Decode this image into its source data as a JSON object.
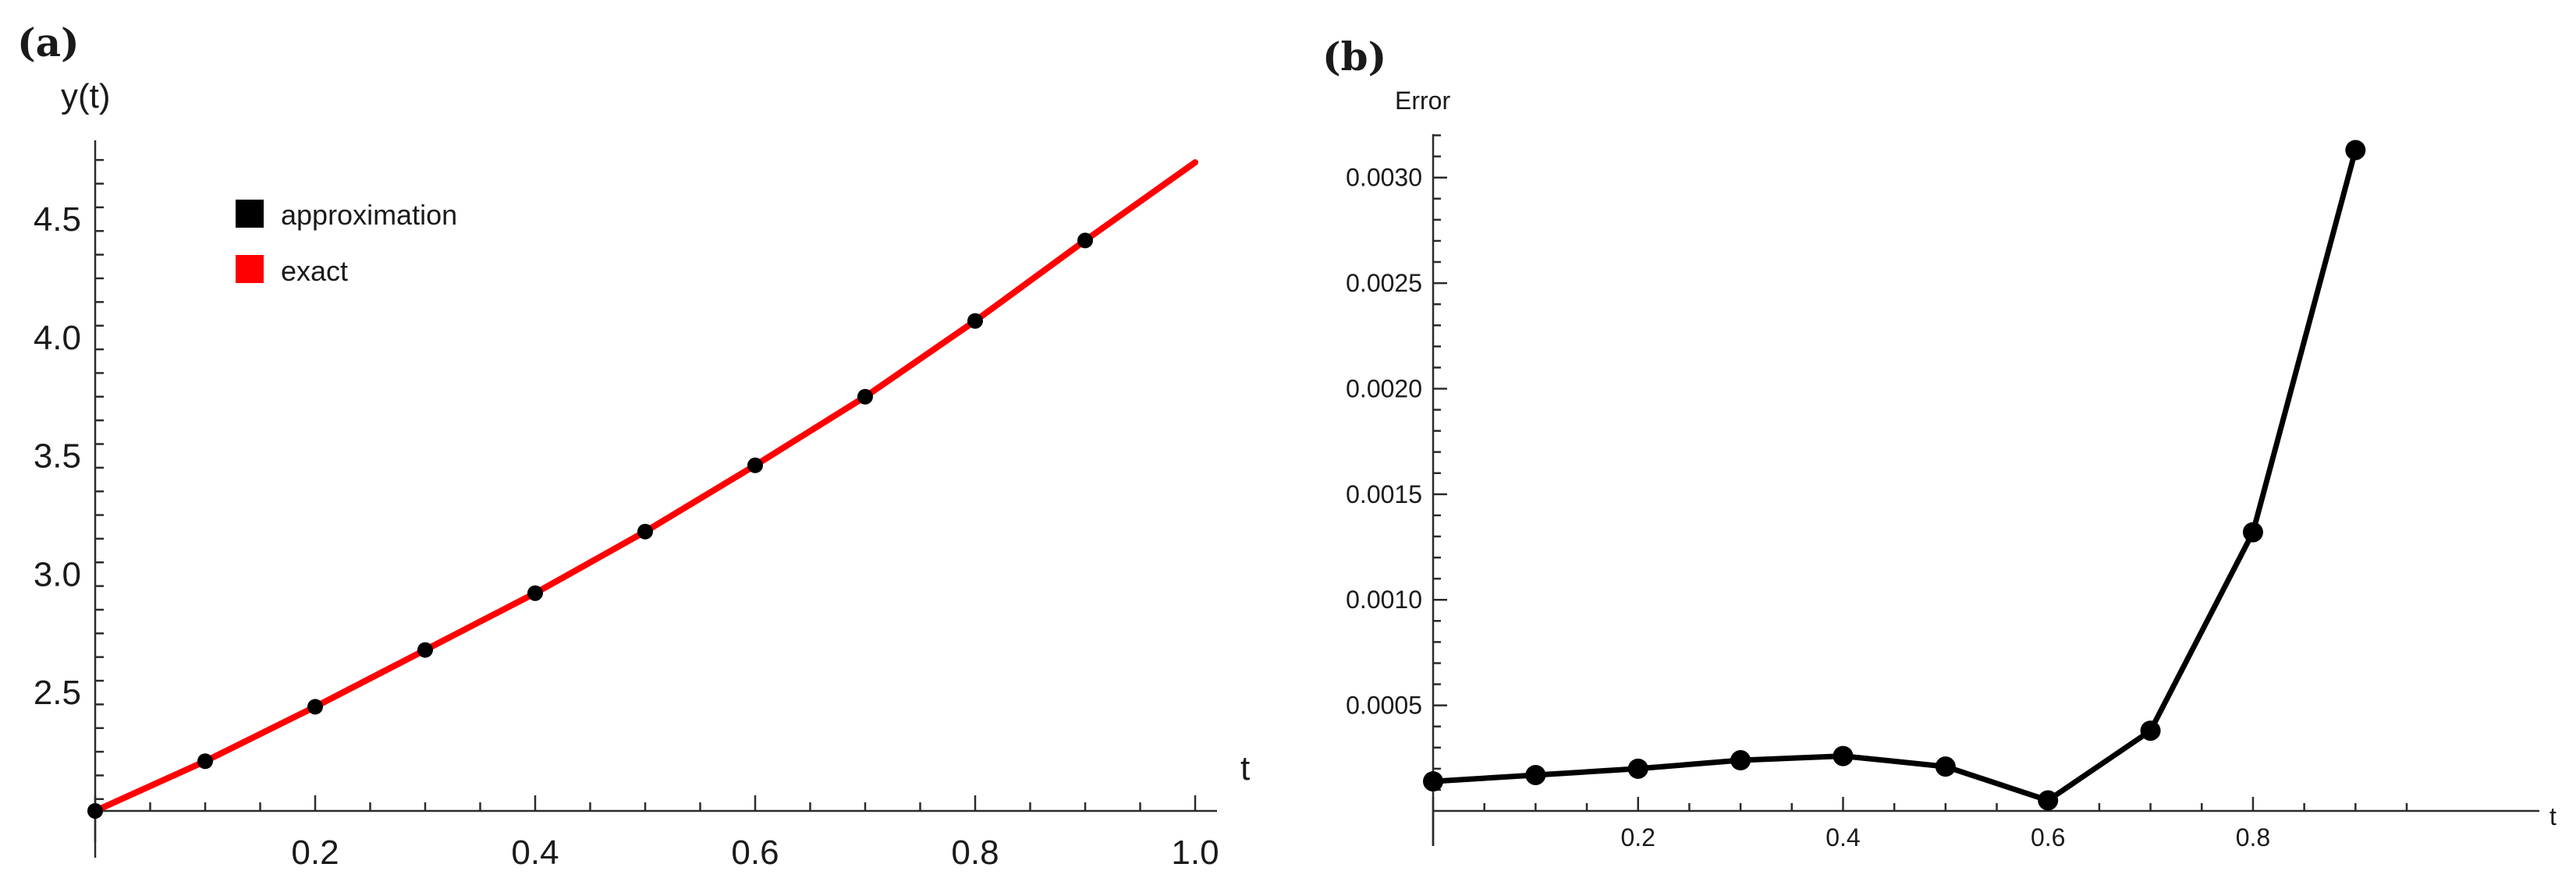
{
  "chart_data": [
    {
      "panel_label": "(a)",
      "type": "line",
      "xlabel": "t",
      "ylabel": "y(t)",
      "xlim": [
        0,
        1.0
      ],
      "ylim": [
        2.0,
        4.8
      ],
      "x_ticks": [
        "0.2",
        "0.4",
        "0.6",
        "0.8",
        "1.0"
      ],
      "x_tick_values": [
        0.2,
        0.4,
        0.6,
        0.8,
        1.0
      ],
      "y_ticks": [
        "2.5",
        "3.0",
        "3.5",
        "4.0",
        "4.5"
      ],
      "y_tick_values": [
        2.5,
        3.0,
        3.5,
        4.0,
        4.5
      ],
      "legend_position": "top-left",
      "series": [
        {
          "name": "approximation",
          "color": "#000000",
          "kind": "points",
          "x": [
            0,
            0.1,
            0.2,
            0.3,
            0.4,
            0.5,
            0.6,
            0.7,
            0.8,
            0.9
          ],
          "y": [
            2.0,
            2.21,
            2.44,
            2.68,
            2.92,
            3.18,
            3.46,
            3.75,
            4.07,
            4.41
          ]
        },
        {
          "name": "exact",
          "color": "#ff0000",
          "kind": "line",
          "x": [
            0,
            0.1,
            0.2,
            0.3,
            0.4,
            0.5,
            0.6,
            0.7,
            0.8,
            0.9,
            1.0
          ],
          "y": [
            2.0,
            2.21,
            2.44,
            2.68,
            2.92,
            3.18,
            3.46,
            3.75,
            4.07,
            4.41,
            4.74
          ]
        }
      ]
    },
    {
      "panel_label": "(b)",
      "type": "line",
      "xlabel": "t",
      "ylabel": "Error",
      "xlim": [
        0,
        0.95
      ],
      "ylim": [
        0.0,
        0.00325
      ],
      "x_ticks": [
        "0.2",
        "0.4",
        "0.6",
        "0.8"
      ],
      "x_tick_values": [
        0.2,
        0.4,
        0.6,
        0.8
      ],
      "y_ticks": [
        "0.0005",
        "0.0010",
        "0.0015",
        "0.0020",
        "0.0025",
        "0.0030"
      ],
      "y_tick_values": [
        0.0005,
        0.001,
        0.0015,
        0.002,
        0.0025,
        0.003
      ],
      "series": [
        {
          "color": "#000000",
          "kind": "line+points",
          "x": [
            0,
            0.1,
            0.2,
            0.3,
            0.4,
            0.5,
            0.6,
            0.7,
            0.8,
            0.9
          ],
          "y": [
            0.00014,
            0.00017,
            0.0002,
            0.00024,
            0.00026,
            0.00021,
            5e-05,
            0.00038,
            0.00132,
            0.00313
          ]
        }
      ]
    }
  ]
}
